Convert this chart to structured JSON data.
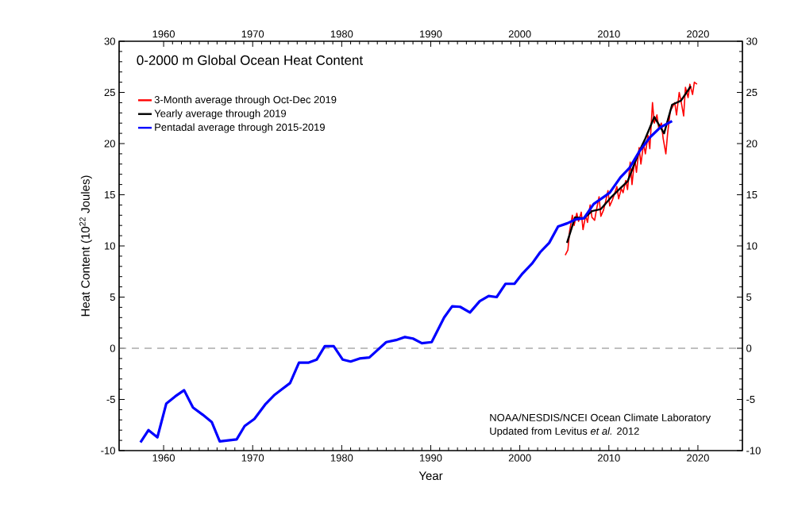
{
  "chart_data": {
    "type": "line",
    "title": "0-2000 m Global Ocean Heat Content",
    "xlabel": "Year",
    "ylabel": "Heat Content (10$^{22}$ Joules)",
    "xlim": [
      1955,
      2025
    ],
    "xticks": [
      1960,
      1970,
      1980,
      1990,
      2000,
      2010,
      2020
    ],
    "x2lim": [
      1955,
      2025
    ],
    "x2ticks": [
      1960,
      1970,
      1980,
      1990,
      2000,
      2010,
      2020
    ],
    "ylim": [
      -10,
      30
    ],
    "yticks": [
      -10,
      -5,
      0,
      5,
      10,
      15,
      20,
      25,
      30
    ],
    "y2lim": [
      -10,
      30
    ],
    "y2ticks": [
      -10,
      -5,
      0,
      5,
      10,
      15,
      20,
      25,
      30
    ],
    "legend": "top left",
    "ref_lines": [
      {
        "axis": "y",
        "value": 0,
        "color": "#aaaaaa",
        "line_style": "dashed"
      }
    ],
    "annotations": [
      "NOAA/NESDIS/NCEI Ocean Climate Laboratory",
      "Updated from Levitus *et al.* 2012"
    ],
    "series": [
      {
        "name": "3-Month average through Oct-Dec 2019",
        "color": "#ff0000",
        "x": [
          2005.1,
          2005.4,
          2005.6,
          2005.9,
          2006.1,
          2006.4,
          2006.6,
          2006.9,
          2007.1,
          2007.4,
          2007.6,
          2007.9,
          2008.1,
          2008.4,
          2008.6,
          2008.9,
          2009.1,
          2009.4,
          2009.6,
          2009.9,
          2010.1,
          2010.4,
          2010.6,
          2010.9,
          2011.1,
          2011.4,
          2011.6,
          2011.9,
          2012.1,
          2012.4,
          2012.6,
          2012.9,
          2013.1,
          2013.4,
          2013.6,
          2013.9,
          2014.1,
          2014.4,
          2014.6,
          2014.9,
          2015.1,
          2015.4,
          2015.6,
          2015.9,
          2016.1,
          2016.4,
          2016.6,
          2016.9,
          2017.1,
          2017.4,
          2017.6,
          2017.9,
          2018.1,
          2018.4,
          2018.6,
          2018.9,
          2019.1,
          2019.4,
          2019.6,
          2019.9
        ],
        "values": [
          9.1,
          9.6,
          11.5,
          13.0,
          12.0,
          13.2,
          12.4,
          13.3,
          11.6,
          13.0,
          12.3,
          14.0,
          12.8,
          12.5,
          13.5,
          14.8,
          12.9,
          13.5,
          14.2,
          15.4,
          13.9,
          14.5,
          15.0,
          15.8,
          14.6,
          15.6,
          15.2,
          16.4,
          15.5,
          18.2,
          16.0,
          18.5,
          17.2,
          19.6,
          18.0,
          20.0,
          19.0,
          20.8,
          19.5,
          24.0,
          22.0,
          22.8,
          21.5,
          22.0,
          20.5,
          19.0,
          21.0,
          23.2,
          23.5,
          24.0,
          22.8,
          25.0,
          24.2,
          22.7,
          25.5,
          24.5,
          25.8,
          24.8,
          26.0,
          25.8
        ]
      },
      {
        "name": "Yearly average through 2019",
        "color": "#000000",
        "x": [
          2005.3,
          2006.2,
          2007.2,
          2008.1,
          2009.1,
          2010.2,
          2011.0,
          2012.1,
          2013.4,
          2014.1,
          2015.1,
          2016.2,
          2017.1,
          2018.1,
          2019.2
        ],
        "values": [
          10.3,
          12.8,
          12.7,
          13.4,
          13.6,
          14.7,
          15.4,
          16.3,
          19.2,
          20.5,
          22.6,
          21.0,
          23.8,
          24.2,
          25.6
        ]
      },
      {
        "name": "Pentadal average through 2015-2019",
        "color": "#0000ff",
        "x": [
          1957.4,
          1958.3,
          1959.3,
          1960.3,
          1961.3,
          1962.3,
          1963.3,
          1964.4,
          1965.4,
          1966.3,
          1968.2,
          1969.1,
          1970.2,
          1971.4,
          1972.4,
          1973.3,
          1974.2,
          1975.2,
          1976.3,
          1977.2,
          1978.1,
          1979.1,
          1980.1,
          1981.0,
          1982.0,
          1983.1,
          1985.0,
          1986.1,
          1987.1,
          1988.0,
          1989.0,
          1990.1,
          1991.5,
          1992.4,
          1993.3,
          1994.4,
          1995.5,
          1996.5,
          1997.4,
          1998.4,
          1999.4,
          2000.3,
          2001.4,
          2002.3,
          2003.3,
          2004.3,
          2005.3,
          2006.3,
          2007.2,
          2008.3,
          2010.1,
          2011.3,
          2012.3,
          2013.4,
          2014.6,
          2015.8,
          2017.1
        ],
        "values": [
          -9.2,
          -8.0,
          -8.7,
          -5.4,
          -4.7,
          -4.1,
          -5.8,
          -6.5,
          -7.2,
          -9.1,
          -8.9,
          -7.6,
          -6.9,
          -5.5,
          -4.6,
          -4.0,
          -3.4,
          -1.4,
          -1.4,
          -1.1,
          0.2,
          0.2,
          -1.1,
          -1.3,
          -1.0,
          -0.9,
          0.6,
          0.8,
          1.1,
          0.95,
          0.5,
          0.6,
          3.0,
          4.1,
          4.05,
          3.5,
          4.6,
          5.1,
          5.0,
          6.3,
          6.3,
          7.3,
          8.3,
          9.4,
          10.3,
          11.9,
          12.2,
          12.6,
          12.7,
          14.1,
          15.2,
          16.7,
          17.6,
          19.2,
          20.6,
          21.6,
          22.2
        ]
      }
    ]
  }
}
